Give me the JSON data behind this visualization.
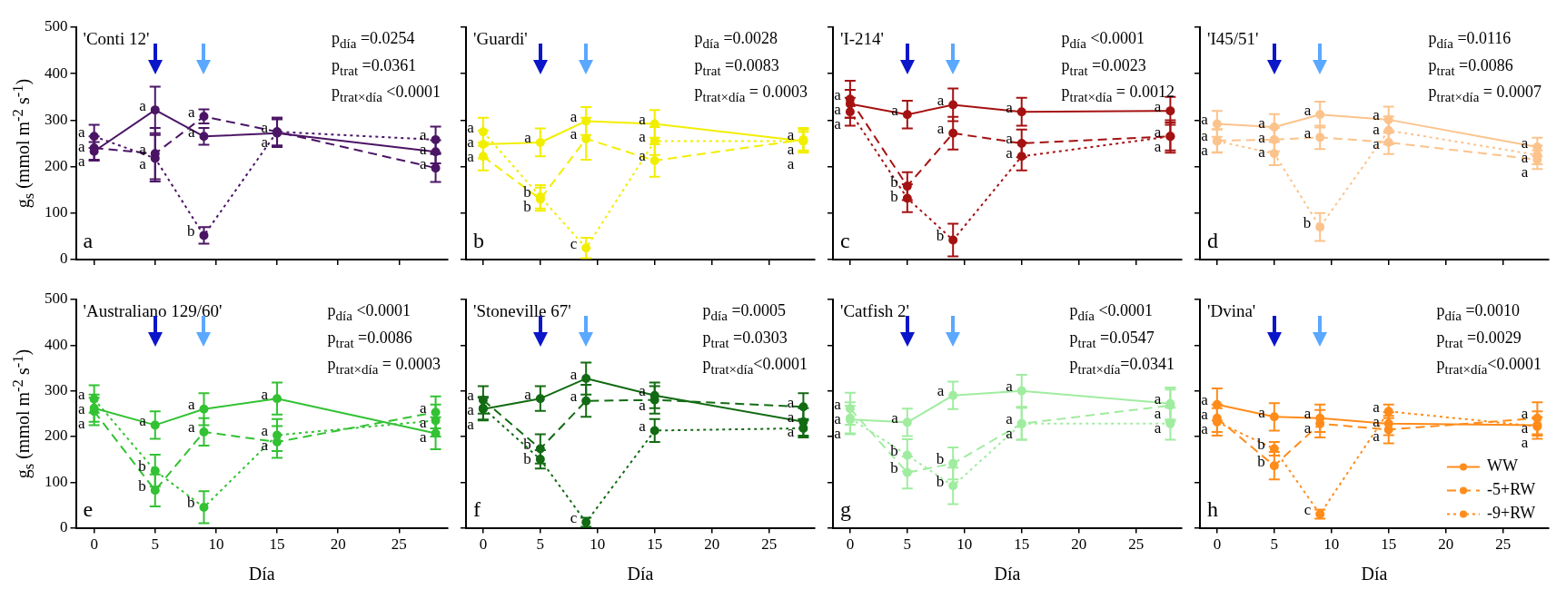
{
  "chart_data": [
    {
      "type": "line",
      "title": "'Conti 12'",
      "ylabel": "g$_{s}$ (mmol m$^{-2}$ s$^{-1}$)",
      "x": [
        0,
        5,
        9,
        15,
        28
      ],
      "xlim": [
        -1.5,
        29
      ],
      "xticks": [
        0,
        5,
        10,
        15,
        20,
        25
      ],
      "ylim": [
        0,
        500
      ],
      "yticks": [
        0,
        100,
        200,
        300,
        400,
        500
      ],
      "tick_labels": "y",
      "marker": "circle",
      "annotations": [
        "p$_{día}$ =0.0254",
        "p$_{trat}$ =0.0361",
        "p$_{trat×día}$ <0.0001",
        "a"
      ],
      "series": [
        {
          "color": "#4b1565",
          "line_style": "solid",
          "values": [
            233,
            322,
            265,
            272,
            232
          ],
          "errors": [
            20,
            50,
            18,
            30,
            25
          ],
          "value_labels": [
            "a",
            "a",
            "a",
            "a",
            "a"
          ]
        },
        {
          "color": "#4b1565",
          "line_style": "dashed",
          "values": [
            240,
            228,
            308,
            275,
            197
          ],
          "errors": [
            25,
            55,
            15,
            30,
            30
          ],
          "value_labels": [
            "a",
            "a",
            "a",
            null,
            "a"
          ]
        },
        {
          "color": "#4b1565",
          "line_style": "dotted",
          "values": [
            265,
            218,
            52,
            275,
            258
          ],
          "errors": [
            25,
            50,
            18,
            30,
            28
          ],
          "value_labels": [
            "a",
            "a",
            "b",
            "a",
            "a"
          ]
        }
      ]
    },
    {
      "type": "line",
      "title": "'Guardi'",
      "x": [
        0,
        5,
        9,
        15,
        28
      ],
      "xlim": [
        -1.5,
        29
      ],
      "xticks": [
        0,
        5,
        10,
        15,
        20,
        25
      ],
      "ylim": [
        0,
        500
      ],
      "yticks": [
        0,
        100,
        200,
        300,
        400,
        500
      ],
      "tick_labels": false,
      "marker": "circle",
      "annotations": [
        "p$_{día}$ =0.0028",
        "p$_{trat}$ =0.0083",
        "p$_{trat×día}$ = 0.0003",
        "b"
      ],
      "series": [
        {
          "color": "#f2ee00",
          "line_style": "solid",
          "values": [
            248,
            252,
            298,
            292,
            255
          ],
          "errors": [
            30,
            30,
            30,
            30,
            20
          ],
          "value_labels": [
            "a",
            "a",
            "a",
            "a",
            "a"
          ]
        },
        {
          "color": "#f2ee00",
          "line_style": "dashed",
          "values": [
            222,
            130,
            260,
            213,
            258
          ],
          "errors": [
            30,
            25,
            45,
            35,
            25
          ],
          "value_labels": [
            "a",
            "b",
            "a",
            "a",
            "a"
          ]
        },
        {
          "color": "#f2ee00",
          "line_style": "dotted",
          "values": [
            275,
            135,
            25,
            255,
            255
          ],
          "errors": [
            30,
            25,
            22,
            30,
            25
          ],
          "value_labels": [
            "a",
            "b",
            "c",
            "a",
            "a"
          ]
        }
      ]
    },
    {
      "type": "line",
      "title": "'I-214'",
      "x": [
        0,
        5,
        9,
        15,
        28
      ],
      "xlim": [
        -1.5,
        29
      ],
      "xticks": [
        0,
        5,
        10,
        15,
        20,
        25
      ],
      "ylim": [
        0,
        500
      ],
      "yticks": [
        0,
        100,
        200,
        300,
        400,
        500
      ],
      "tick_labels": false,
      "marker": "circle",
      "annotations": [
        "p$_{día}$ <0.0001",
        "p$_{trat}$ =0.0023",
        "p$_{trat×día}$ = 0.0012",
        "c"
      ],
      "series": [
        {
          "color": "#a51212",
          "line_style": "solid",
          "values": [
            335,
            312,
            333,
            318,
            320
          ],
          "errors": [
            30,
            30,
            35,
            30,
            30
          ],
          "value_labels": [
            "a",
            "a",
            "a",
            "a",
            "a"
          ]
        },
        {
          "color": "#a51212",
          "line_style": "dashed",
          "values": [
            345,
            158,
            272,
            250,
            265
          ],
          "errors": [
            40,
            30,
            35,
            30,
            30
          ],
          "value_labels": [
            "a",
            "b",
            "a",
            "a",
            "a"
          ]
        },
        {
          "color": "#a51212",
          "line_style": "dotted",
          "values": [
            318,
            132,
            42,
            222,
            265
          ],
          "errors": [
            30,
            30,
            35,
            30,
            35
          ],
          "value_labels": [
            "a",
            "b",
            "b",
            "a",
            "a"
          ]
        }
      ]
    },
    {
      "type": "line",
      "title": "'I45/51'",
      "x": [
        0,
        5,
        9,
        15,
        28
      ],
      "xlim": [
        -1.5,
        29
      ],
      "xticks": [
        0,
        5,
        10,
        15,
        20,
        25
      ],
      "ylim": [
        0,
        500
      ],
      "yticks": [
        0,
        100,
        200,
        300,
        400,
        500
      ],
      "tick_labels": false,
      "marker": "circle",
      "annotations": [
        "p$_{día}$ =0.0116",
        "p$_{trat}$ =0.0086",
        "p$_{trat×día}$ = 0.0007",
        "d"
      ],
      "series": [
        {
          "color": "#fcc38c",
          "line_style": "solid",
          "values": [
            292,
            285,
            312,
            301,
            242
          ],
          "errors": [
            28,
            28,
            28,
            28,
            20
          ],
          "value_labels": [
            "a",
            "a",
            "a",
            "a",
            "a"
          ]
        },
        {
          "color": "#fcc38c",
          "line_style": "dashed",
          "values": [
            256,
            258,
            263,
            252,
            215
          ],
          "errors": [
            25,
            25,
            25,
            25,
            20
          ],
          "value_labels": [
            "a",
            "a",
            "a",
            "a",
            "a"
          ]
        },
        {
          "color": "#fcc38c",
          "line_style": "dotted",
          "values": [
            255,
            228,
            70,
            278,
            225
          ],
          "errors": [
            25,
            25,
            30,
            30,
            20
          ],
          "value_labels": [
            "a",
            "a",
            "b",
            "a",
            "a"
          ]
        }
      ]
    },
    {
      "type": "line",
      "title": "'Australiano 129/60'",
      "ylabel": "g$_{s}$ (mmol m$^{-2}$ s$^{-1}$)",
      "xlabel": "Día",
      "x": [
        0,
        5,
        9,
        15,
        28
      ],
      "xlim": [
        -1.5,
        29
      ],
      "xticks": [
        0,
        5,
        10,
        15,
        20,
        25
      ],
      "ylim": [
        0,
        500
      ],
      "yticks": [
        0,
        100,
        200,
        300,
        400,
        500
      ],
      "marker": "circle",
      "annotations": [
        "p$_{día}$ <0.0001",
        "p$_{trat}$ =0.0086",
        "p$_{trat×día}$ = 0.0003",
        "e"
      ],
      "series": [
        {
          "color": "#33c233",
          "line_style": "solid",
          "values": [
            262,
            225,
            260,
            283,
            207
          ],
          "errors": [
            30,
            30,
            35,
            35,
            35
          ],
          "value_labels": [
            "a",
            "a",
            "a",
            "a",
            "a"
          ]
        },
        {
          "color": "#33c233",
          "line_style": "dashed",
          "values": [
            255,
            82,
            210,
            188,
            253
          ],
          "errors": [
            30,
            35,
            30,
            35,
            35
          ],
          "value_labels": [
            "a",
            "b",
            "a",
            "a",
            "a"
          ]
        },
        {
          "color": "#33c233",
          "line_style": "dotted",
          "values": [
            282,
            125,
            45,
            203,
            235
          ],
          "errors": [
            30,
            35,
            35,
            35,
            35
          ],
          "value_labels": [
            "a",
            "b",
            "b",
            "a",
            "a"
          ]
        }
      ]
    },
    {
      "type": "line",
      "title": "'Stoneville 67'",
      "xlabel": "Día",
      "x": [
        0,
        5,
        9,
        15,
        28
      ],
      "xlim": [
        -1.5,
        29
      ],
      "xticks": [
        0,
        5,
        10,
        15,
        20,
        25
      ],
      "ylim": [
        0,
        500
      ],
      "yticks": [
        0,
        100,
        200,
        300,
        400,
        500
      ],
      "tick_labels": "x",
      "marker": "circle",
      "annotations": [
        "p$_{día}$ =0.0005",
        "p$_{trat}$ =0.0303",
        "p$_{trat×día}$<0.0001",
        "f"
      ],
      "series": [
        {
          "color": "#136b13",
          "line_style": "solid",
          "values": [
            260,
            283,
            327,
            290,
            232
          ],
          "errors": [
            25,
            27,
            35,
            28,
            30
          ],
          "value_labels": [
            "a",
            "a",
            "a",
            "a",
            "a"
          ]
        },
        {
          "color": "#136b13",
          "line_style": "dashed",
          "values": [
            280,
            173,
            278,
            280,
            265
          ],
          "errors": [
            30,
            32,
            35,
            30,
            30
          ],
          "value_labels": [
            "a",
            "b",
            "a",
            "a",
            "a"
          ]
        },
        {
          "color": "#136b13",
          "line_style": "dotted",
          "values": [
            262,
            150,
            12,
            213,
            218
          ],
          "errors": [
            25,
            20,
            10,
            25,
            20
          ],
          "value_labels": [
            "a",
            "b",
            "c",
            "a",
            "a"
          ]
        }
      ]
    },
    {
      "type": "line",
      "title": "'Catfish 2'",
      "xlabel": "Día",
      "x": [
        0,
        5,
        9,
        15,
        28
      ],
      "xlim": [
        -1.5,
        29
      ],
      "xticks": [
        0,
        5,
        10,
        15,
        20,
        25
      ],
      "ylim": [
        0,
        500
      ],
      "yticks": [
        0,
        100,
        200,
        300,
        400,
        500
      ],
      "tick_labels": "x",
      "marker": "circle",
      "annotations": [
        "p$_{día}$ <0.0001",
        "p$_{trat}$ =0.0547",
        "p$_{trat×día}$=0.0341",
        "g"
      ],
      "series": [
        {
          "color": "#a0eca0",
          "line_style": "solid",
          "values": [
            237,
            231,
            290,
            300,
            272
          ],
          "errors": [
            30,
            30,
            30,
            35,
            35
          ],
          "value_labels": [
            "a",
            "a",
            "a",
            "a",
            "a"
          ]
        },
        {
          "color": "#a0eca0",
          "line_style": "dashed",
          "values": [
            261,
            121,
            141,
            228,
            268
          ],
          "errors": [
            35,
            35,
            35,
            35,
            35
          ],
          "value_labels": [
            "a",
            "b",
            "b",
            "a",
            "a"
          ]
        },
        {
          "color": "#a0eca0",
          "line_style": "dotted",
          "values": [
            240,
            159,
            92,
            228,
            228
          ],
          "errors": [
            35,
            35,
            40,
            35,
            35
          ],
          "value_labels": [
            "a",
            "b",
            "b",
            "a",
            "a"
          ]
        }
      ]
    },
    {
      "type": "line",
      "title": "'Dvina'",
      "xlabel": "Día",
      "x": [
        0,
        5,
        9,
        15,
        28
      ],
      "xlim": [
        -1.5,
        29
      ],
      "xticks": [
        0,
        5,
        10,
        15,
        20,
        25
      ],
      "ylim": [
        0,
        500
      ],
      "yticks": [
        0,
        100,
        200,
        300,
        400,
        500
      ],
      "tick_labels": "x",
      "marker": "circle",
      "legend": "bottom right",
      "annotations": [
        "p$_{día}$ =0.0010",
        "p$_{trat}$ =0.0029",
        "p$_{trat×día}$<0.0001",
        "h"
      ],
      "series": [
        {
          "name": "WW",
          "color": "#ff8c1a",
          "line_style": "solid",
          "values": [
            270,
            243,
            240,
            228,
            225
          ],
          "errors": [
            35,
            30,
            30,
            25,
            30
          ],
          "value_labels": [
            "a",
            "a",
            "a",
            "a",
            "a"
          ]
        },
        {
          "name": "-5+RW",
          "color": "#ff8c1a",
          "line_style": "dashed",
          "values": [
            240,
            136,
            228,
            215,
            240
          ],
          "errors": [
            30,
            30,
            30,
            30,
            35
          ],
          "value_labels": [
            "a",
            "b",
            "a",
            "a",
            "a"
          ]
        },
        {
          "name": "-9+RW",
          "color": "#ff8c1a",
          "line_style": "dotted",
          "values": [
            232,
            173,
            30,
            255,
            222
          ],
          "errors": [
            30,
            15,
            10,
            15,
            20
          ],
          "value_labels": [
            "a",
            "b",
            "c",
            "a",
            "a"
          ]
        }
      ]
    }
  ]
}
